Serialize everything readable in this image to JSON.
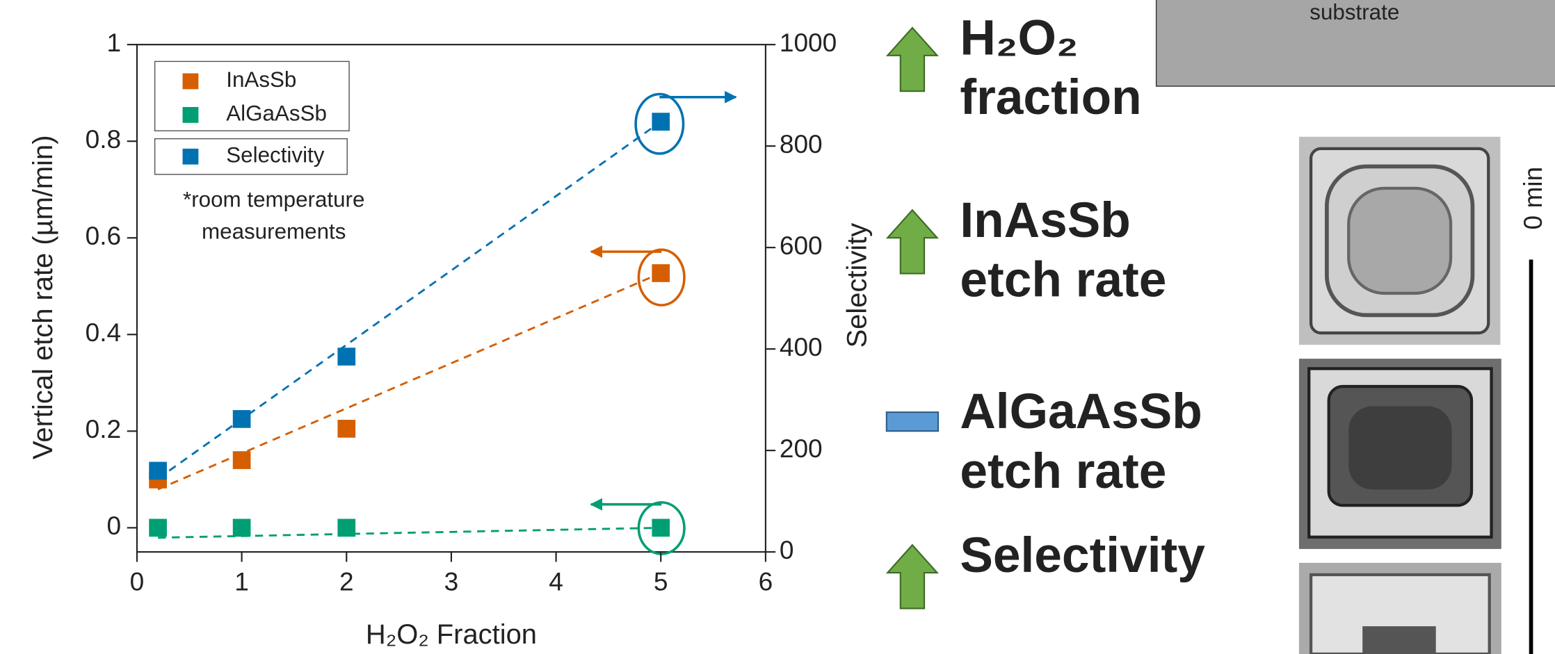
{
  "chart_data": {
    "type": "scatter",
    "x_label": "H₂O₂ Fraction",
    "y_label": "Vertical etch rate (µm/min)",
    "y2_label": "Selectivity",
    "annotation": [
      "*room temperature",
      "measurements"
    ],
    "xlim": [
      0,
      6
    ],
    "xticks": [
      0,
      1,
      2,
      3,
      4,
      5,
      6
    ],
    "ylim": [
      -0.05,
      1
    ],
    "yticks": [
      0,
      0.2,
      0.4,
      0.6,
      0.8,
      1
    ],
    "y2lim": [
      0,
      1000
    ],
    "y2ticks": [
      0,
      200,
      400,
      600,
      800,
      1000
    ],
    "x": [
      0.2,
      1,
      2,
      5
    ],
    "series": [
      {
        "name": "InAsSb",
        "color": "#d55e00",
        "values": [
          0.1,
          0.14,
          0.205,
          0.527
        ]
      },
      {
        "name": "AlGaAsSb",
        "color": "#009e73",
        "values": [
          0,
          0,
          0,
          0
        ]
      },
      {
        "name": "Selectivity",
        "color": "#0072b2",
        "values": [
          160,
          262,
          385,
          848
        ],
        "axis": "y2"
      }
    ]
  },
  "trends": [
    {
      "lines": [
        "H₂O₂",
        "fraction"
      ],
      "direction": "up"
    },
    {
      "lines": [
        "InAsSb",
        "etch rate"
      ],
      "direction": "up"
    },
    {
      "lines": [
        "AlGaAsSb",
        "etch rate"
      ],
      "direction": "flat"
    },
    {
      "lines": [
        "Selectivity"
      ],
      "direction": "up"
    }
  ],
  "substrate_label": "substrate",
  "time_label": "0 min"
}
